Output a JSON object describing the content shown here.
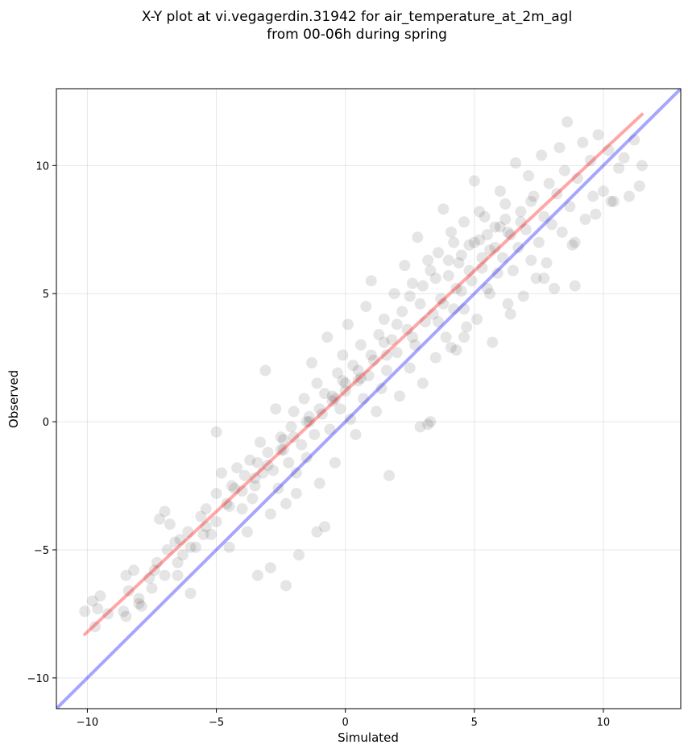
{
  "chart_data": {
    "type": "scatter",
    "title": "X-Y plot at vi.vegagerdin.31942 for air_temperature_at_2m_agl",
    "subtitle": "from 00-06h during spring",
    "xlabel": "Simulated",
    "ylabel": "Observed",
    "xlim": [
      -11.2,
      13.0
    ],
    "ylim": [
      -11.2,
      13.0
    ],
    "xticks": [
      -10,
      -5,
      0,
      5,
      10
    ],
    "yticks": [
      -10,
      -5,
      0,
      5,
      10
    ],
    "xtick_labels": [
      "−10",
      "−5",
      "0",
      "5",
      "10"
    ],
    "ytick_labels": [
      "−10",
      "−5",
      "0",
      "5",
      "10"
    ],
    "grid": true,
    "series": [
      {
        "kind": "scatter",
        "color": "#000000",
        "opacity": 0.1,
        "points": [
          [
            -10.1,
            -7.4
          ],
          [
            -9.8,
            -7.0
          ],
          [
            -9.5,
            -6.8
          ],
          [
            -9.7,
            -8.0
          ],
          [
            -9.6,
            -7.3
          ],
          [
            -8.6,
            -7.4
          ],
          [
            -8.5,
            -6.0
          ],
          [
            -8.2,
            -5.8
          ],
          [
            -8.0,
            -6.9
          ],
          [
            -7.9,
            -7.2
          ],
          [
            -7.6,
            -6.1
          ],
          [
            -7.3,
            -5.5
          ],
          [
            -7.2,
            -3.8
          ],
          [
            -7.0,
            -3.5
          ],
          [
            -6.9,
            -5.0
          ],
          [
            -6.8,
            -4.0
          ],
          [
            -6.6,
            -4.7
          ],
          [
            -6.5,
            -6.0
          ],
          [
            -6.3,
            -5.2
          ],
          [
            -6.1,
            -4.3
          ],
          [
            -6.0,
            -6.7
          ],
          [
            -5.8,
            -4.9
          ],
          [
            -5.6,
            -3.7
          ],
          [
            -5.4,
            -4.1
          ],
          [
            -5.2,
            -4.4
          ],
          [
            -5.0,
            -2.8
          ],
          [
            -5.0,
            -0.4
          ],
          [
            -4.8,
            -2.0
          ],
          [
            -4.6,
            -3.2
          ],
          [
            -4.5,
            -4.9
          ],
          [
            -4.3,
            -2.6
          ],
          [
            -4.2,
            -1.8
          ],
          [
            -4.0,
            -3.4
          ],
          [
            -3.9,
            -2.1
          ],
          [
            -3.8,
            -4.3
          ],
          [
            -3.7,
            -1.5
          ],
          [
            -3.6,
            -3.0
          ],
          [
            -3.5,
            -2.5
          ],
          [
            -3.4,
            -6.0
          ],
          [
            -3.3,
            -0.8
          ],
          [
            -3.2,
            -2.0
          ],
          [
            -3.1,
            2.0
          ],
          [
            -3.0,
            -1.2
          ],
          [
            -2.9,
            -3.6
          ],
          [
            -2.8,
            -1.9
          ],
          [
            -2.7,
            0.5
          ],
          [
            -2.6,
            -2.6
          ],
          [
            -2.5,
            -0.6
          ],
          [
            -2.4,
            -1.1
          ],
          [
            -2.3,
            -3.2
          ],
          [
            -2.2,
            -1.6
          ],
          [
            -2.1,
            -0.2
          ],
          [
            -2.0,
            0.4
          ],
          [
            -1.9,
            -2.0
          ],
          [
            -1.8,
            -5.2
          ],
          [
            -1.7,
            -0.9
          ],
          [
            -1.6,
            0.9
          ],
          [
            -1.5,
            -1.4
          ],
          [
            -1.4,
            0.0
          ],
          [
            -1.3,
            2.3
          ],
          [
            -1.2,
            -0.5
          ],
          [
            -1.1,
            1.5
          ],
          [
            -1.0,
            -2.4
          ],
          [
            -0.9,
            0.3
          ],
          [
            -0.8,
            1.1
          ],
          [
            -0.7,
            3.3
          ],
          [
            -0.6,
            -0.3
          ],
          [
            -0.5,
            0.8
          ],
          [
            -0.4,
            -1.6
          ],
          [
            -0.3,
            1.9
          ],
          [
            -0.2,
            0.5
          ],
          [
            -0.1,
            2.6
          ],
          [
            0.0,
            1.2
          ],
          [
            0.1,
            3.8
          ],
          [
            0.2,
            0.1
          ],
          [
            0.3,
            2.2
          ],
          [
            0.4,
            -0.5
          ],
          [
            0.5,
            1.6
          ],
          [
            0.6,
            3.0
          ],
          [
            0.7,
            0.9
          ],
          [
            0.8,
            4.5
          ],
          [
            0.9,
            1.8
          ],
          [
            1.0,
            5.5
          ],
          [
            1.1,
            2.4
          ],
          [
            1.2,
            0.4
          ],
          [
            1.3,
            3.4
          ],
          [
            1.4,
            1.3
          ],
          [
            1.5,
            4.0
          ],
          [
            1.6,
            2.0
          ],
          [
            1.7,
            -2.1
          ],
          [
            1.8,
            3.2
          ],
          [
            1.9,
            5.0
          ],
          [
            2.0,
            2.7
          ],
          [
            2.1,
            1.0
          ],
          [
            2.2,
            4.3
          ],
          [
            2.3,
            6.1
          ],
          [
            2.4,
            3.6
          ],
          [
            2.5,
            2.1
          ],
          [
            2.6,
            5.4
          ],
          [
            2.7,
            3.0
          ],
          [
            2.8,
            7.2
          ],
          [
            2.9,
            4.6
          ],
          [
            3.0,
            1.5
          ],
          [
            3.1,
            3.9
          ],
          [
            3.2,
            -0.1
          ],
          [
            3.3,
            5.9
          ],
          [
            3.4,
            4.2
          ],
          [
            3.5,
            2.5
          ],
          [
            3.6,
            6.6
          ],
          [
            3.7,
            4.8
          ],
          [
            3.8,
            8.3
          ],
          [
            3.9,
            3.3
          ],
          [
            4.0,
            5.7
          ],
          [
            4.1,
            7.4
          ],
          [
            4.2,
            4.4
          ],
          [
            4.3,
            2.8
          ],
          [
            4.4,
            6.2
          ],
          [
            4.5,
            5.1
          ],
          [
            4.6,
            7.8
          ],
          [
            4.7,
            3.7
          ],
          [
            4.8,
            6.9
          ],
          [
            4.9,
            5.5
          ],
          [
            5.0,
            9.4
          ],
          [
            5.1,
            4.0
          ],
          [
            5.2,
            7.1
          ],
          [
            5.3,
            6.0
          ],
          [
            5.4,
            8.0
          ],
          [
            5.5,
            5.2
          ],
          [
            5.6,
            6.7
          ],
          [
            5.7,
            3.1
          ],
          [
            5.8,
            7.6
          ],
          [
            5.9,
            5.8
          ],
          [
            6.0,
            9.0
          ],
          [
            6.1,
            6.4
          ],
          [
            6.2,
            8.5
          ],
          [
            6.3,
            4.6
          ],
          [
            6.4,
            7.3
          ],
          [
            6.5,
            5.9
          ],
          [
            6.6,
            10.1
          ],
          [
            6.7,
            6.8
          ],
          [
            6.8,
            8.2
          ],
          [
            6.9,
            4.9
          ],
          [
            7.0,
            7.5
          ],
          [
            7.1,
            9.6
          ],
          [
            7.2,
            6.3
          ],
          [
            7.3,
            8.8
          ],
          [
            7.4,
            5.6
          ],
          [
            7.5,
            7.0
          ],
          [
            7.6,
            10.4
          ],
          [
            7.7,
            8.0
          ],
          [
            7.8,
            6.2
          ],
          [
            7.9,
            9.3
          ],
          [
            8.0,
            7.7
          ],
          [
            8.1,
            5.2
          ],
          [
            8.2,
            8.9
          ],
          [
            8.3,
            10.7
          ],
          [
            8.4,
            7.4
          ],
          [
            8.5,
            9.8
          ],
          [
            8.6,
            11.7
          ],
          [
            8.7,
            8.4
          ],
          [
            8.8,
            6.9
          ],
          [
            8.9,
            5.3
          ],
          [
            9.0,
            9.5
          ],
          [
            9.2,
            10.9
          ],
          [
            9.3,
            7.9
          ],
          [
            9.5,
            10.2
          ],
          [
            9.6,
            8.8
          ],
          [
            9.8,
            11.2
          ],
          [
            10.0,
            9.0
          ],
          [
            10.2,
            10.6
          ],
          [
            10.4,
            8.6
          ],
          [
            10.6,
            9.9
          ],
          [
            10.8,
            10.3
          ],
          [
            11.0,
            8.8
          ],
          [
            11.2,
            11.0
          ],
          [
            11.4,
            9.2
          ],
          [
            11.5,
            10.0
          ],
          [
            2.5,
            4.9
          ],
          [
            3.0,
            5.3
          ],
          [
            3.5,
            5.6
          ],
          [
            4.0,
            6.3
          ],
          [
            4.5,
            6.5
          ],
          [
            5.0,
            7.0
          ],
          [
            5.5,
            7.3
          ],
          [
            6.0,
            7.6
          ],
          [
            3.8,
            4.6
          ],
          [
            4.3,
            5.2
          ],
          [
            4.8,
            5.9
          ],
          [
            5.3,
            6.4
          ],
          [
            5.8,
            6.8
          ],
          [
            6.3,
            7.4
          ],
          [
            6.8,
            7.8
          ],
          [
            2.0,
            3.8
          ],
          [
            1.5,
            3.1
          ],
          [
            1.0,
            2.6
          ],
          [
            0.5,
            2.0
          ],
          [
            0.0,
            1.5
          ],
          [
            -0.5,
            1.0
          ],
          [
            -1.0,
            0.5
          ],
          [
            -1.5,
            0.0
          ],
          [
            -2.0,
            -0.6
          ],
          [
            -2.5,
            -1.1
          ],
          [
            -3.0,
            -1.7
          ],
          [
            -3.5,
            -2.2
          ],
          [
            -4.0,
            -2.7
          ],
          [
            -4.5,
            -3.3
          ],
          [
            -5.0,
            -3.9
          ],
          [
            -5.5,
            -4.4
          ],
          [
            -6.0,
            -4.9
          ],
          [
            -6.5,
            -5.5
          ],
          [
            -7.0,
            -6.0
          ],
          [
            -7.5,
            -6.5
          ],
          [
            -8.0,
            -7.1
          ],
          [
            -8.5,
            -7.6
          ],
          [
            3.2,
            6.3
          ],
          [
            4.2,
            7.0
          ],
          [
            5.2,
            8.2
          ],
          [
            6.2,
            7.9
          ],
          [
            7.2,
            8.6
          ],
          [
            5.6,
            5.0
          ],
          [
            4.6,
            4.4
          ],
          [
            3.6,
            3.9
          ],
          [
            2.6,
            3.3
          ],
          [
            1.6,
            2.6
          ],
          [
            0.6,
            1.7
          ],
          [
            -0.4,
            0.9
          ],
          [
            -1.4,
            0.2
          ],
          [
            -2.4,
            -0.7
          ],
          [
            -3.4,
            -1.6
          ],
          [
            -4.4,
            -2.5
          ],
          [
            -5.4,
            -3.4
          ],
          [
            -6.4,
            -4.6
          ],
          [
            -7.4,
            -5.8
          ],
          [
            -8.4,
            -6.6
          ],
          [
            -9.2,
            -7.5
          ],
          [
            3.3,
            0.0
          ],
          [
            2.9,
            -0.2
          ],
          [
            -0.1,
            1.6
          ],
          [
            -1.9,
            -2.8
          ],
          [
            -2.3,
            -6.4
          ],
          [
            -2.9,
            -5.7
          ],
          [
            -0.8,
            -4.1
          ],
          [
            -1.1,
            -4.3
          ],
          [
            4.1,
            2.9
          ],
          [
            4.6,
            3.3
          ],
          [
            6.4,
            4.2
          ],
          [
            7.7,
            5.6
          ],
          [
            8.9,
            7.0
          ],
          [
            9.7,
            8.1
          ],
          [
            10.3,
            8.6
          ]
        ]
      },
      {
        "kind": "line",
        "color": "#ff0000",
        "opacity": 0.35,
        "points": [
          [
            -10.1,
            -8.3
          ],
          [
            11.5,
            12.0
          ]
        ]
      },
      {
        "kind": "line",
        "color": "#0000ff",
        "opacity": 0.35,
        "points": [
          [
            -11.2,
            -11.2
          ],
          [
            13.0,
            13.0
          ]
        ]
      }
    ]
  }
}
